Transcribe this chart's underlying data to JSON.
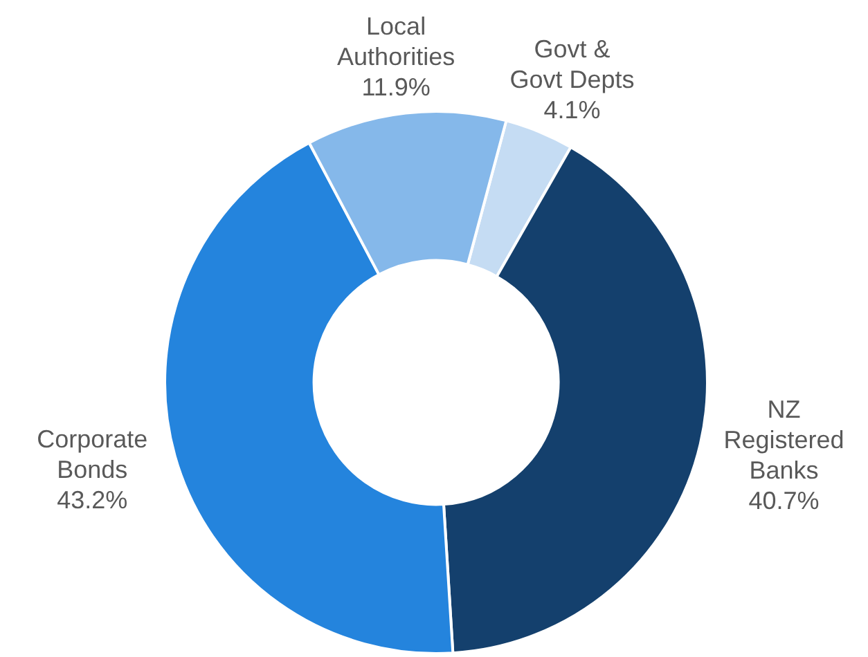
{
  "chart_data": {
    "type": "donut",
    "categories": [
      "Govt & Govt Depts",
      "NZ Registered Banks",
      "Corporate Bonds",
      "Local Authorities"
    ],
    "values": [
      4.1,
      40.7,
      43.2,
      11.9
    ],
    "value_labels": [
      "4.1%",
      "40.7%",
      "43.2%",
      "11.9%"
    ],
    "colors": [
      "#c5dcf3",
      "#14406d",
      "#2484dd",
      "#85b8ea"
    ],
    "legend": false
  }
}
